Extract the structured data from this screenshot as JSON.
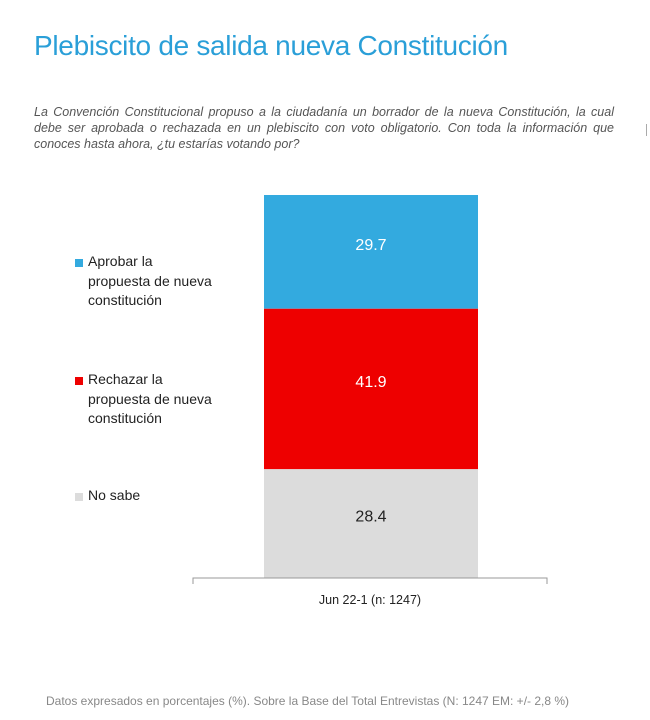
{
  "title": "Plebiscito de salida nueva Constitución",
  "question": "La Convención Constitucional propuso a la ciudadanía un borrador de la nueva Constitución, la cual debe ser aprobada o rechazada en un plebiscito con voto obligatorio. Con toda la información que conoces hasta ahora, ¿tu estarías votando por?",
  "footnote": "Datos expresados en porcentajes (%). Sobre la Base del Total Entrevistas (N: 1247  EM: +/- 2,8 %)",
  "legend": [
    {
      "label": "Aprobar la propuesta de nueva constitución",
      "color": "#33aadf"
    },
    {
      "label": "Rechazar la propuesta de nueva constitución",
      "color": "#ee0000"
    },
    {
      "label": "No sabe",
      "color": "#dcdcdc"
    }
  ],
  "chart_data": {
    "type": "bar",
    "stacked": true,
    "categories": [
      "Jun 22-1 (n: 1247)"
    ],
    "series": [
      {
        "name": "Aprobar la propuesta de nueva constitución",
        "values": [
          29.7
        ],
        "color": "#33aadf",
        "label_color": "#ffffff"
      },
      {
        "name": "Rechazar la propuesta de nueva constitución",
        "values": [
          41.9
        ],
        "color": "#ee0000",
        "label_color": "#ffffff"
      },
      {
        "name": "No sabe",
        "values": [
          28.4
        ],
        "color": "#dcdcdc",
        "label_color": "#222222"
      }
    ],
    "ylim": [
      0,
      100
    ],
    "title": "",
    "xlabel": "",
    "ylabel": ""
  }
}
